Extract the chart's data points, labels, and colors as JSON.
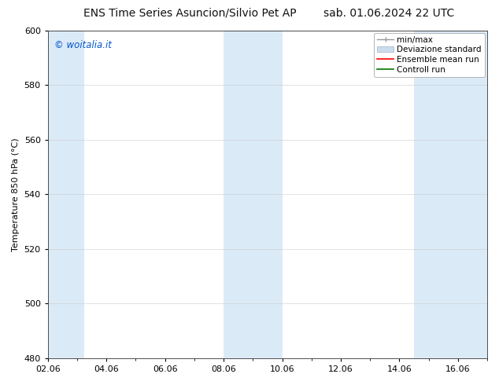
{
  "title_left": "ENS Time Series Asuncion/Silvio Pet AP",
  "title_right": "sab. 01.06.2024 22 UTC",
  "ylabel": "Temperature 850 hPa (°C)",
  "ylim": [
    480,
    600
  ],
  "yticks": [
    480,
    500,
    520,
    540,
    560,
    580,
    600
  ],
  "xtick_labels": [
    "02.06",
    "04.06",
    "06.06",
    "08.06",
    "10.06",
    "12.06",
    "14.06",
    "16.06"
  ],
  "xtick_positions": [
    0,
    2,
    4,
    6,
    8,
    10,
    12,
    14
  ],
  "xlim": [
    0,
    15
  ],
  "bg_color": "#ffffff",
  "plot_bg_color": "#ffffff",
  "shaded_band_color": "#dbeaf7",
  "shaded_bands": [
    {
      "x_start": 0,
      "x_end": 1.25
    },
    {
      "x_start": 6.0,
      "x_end": 8.0
    },
    {
      "x_start": 12.5,
      "x_end": 15.0
    }
  ],
  "watermark_text": "© woitalia.it",
  "watermark_color": "#0055cc",
  "legend_items": [
    {
      "label": "min/max",
      "color": "#aaaaaa",
      "style": "errorbar"
    },
    {
      "label": "Deviazione standard",
      "color": "#ccdcee",
      "style": "rect"
    },
    {
      "label": "Ensemble mean run",
      "color": "#ff0000",
      "style": "line"
    },
    {
      "label": "Controll run",
      "color": "#007700",
      "style": "line"
    }
  ],
  "title_fontsize": 10,
  "tick_fontsize": 8,
  "legend_fontsize": 7.5,
  "ylabel_fontsize": 8,
  "watermark_fontsize": 8.5
}
